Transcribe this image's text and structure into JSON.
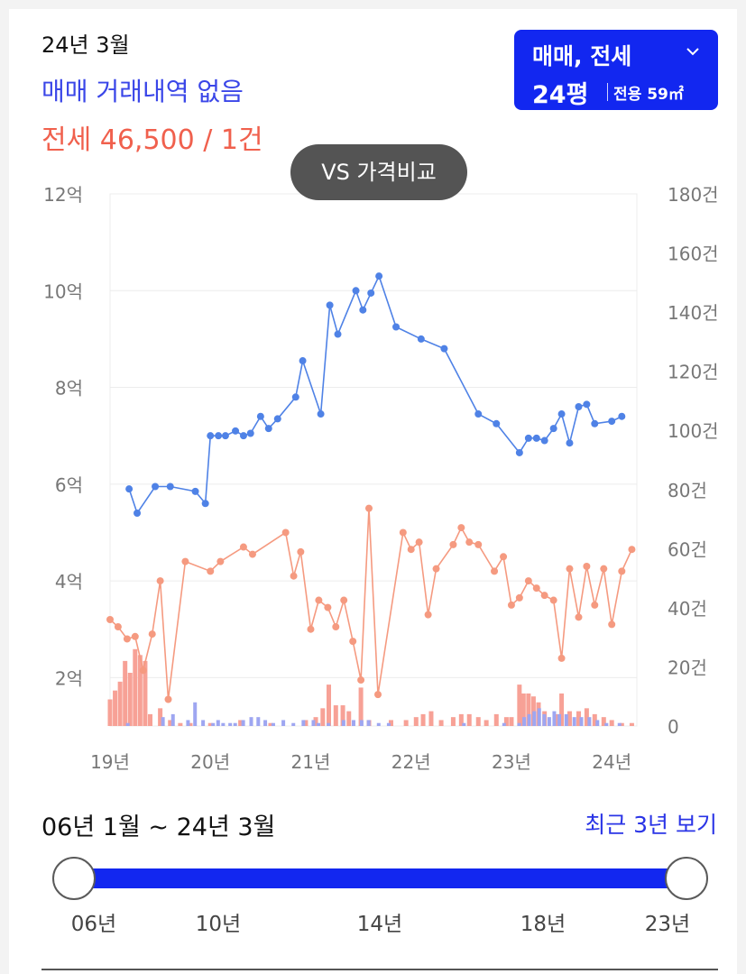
{
  "header": {
    "month": "24년 3월",
    "sale_status": "매매 거래내역 없음",
    "jeonse_status": "전세 46,500 / 1건"
  },
  "type_selector": {
    "label": "매매, 전세",
    "size_main": "24평",
    "size_sub": "전용 59㎡"
  },
  "compare_button": {
    "label": "VS 가격비교"
  },
  "chart_data": {
    "type": "line",
    "x_ticks": [
      "19년",
      "20년",
      "21년",
      "22년",
      "23년",
      "24년"
    ],
    "y_left_ticks": [
      "2억",
      "4억",
      "6억",
      "8억",
      "10억",
      "12억"
    ],
    "y_left_range": [
      1,
      12
    ],
    "y_right_ticks": [
      "0",
      "20건",
      "40건",
      "60건",
      "80건",
      "100건",
      "120건",
      "140건",
      "160건",
      "180건"
    ],
    "y_right_range": [
      0,
      180
    ],
    "x_range": [
      2019.0,
      2024.25
    ],
    "grid": true,
    "series": [
      {
        "color": "#4f82e6",
        "points": [
          [
            2019.19,
            5.9
          ],
          [
            2019.27,
            5.4
          ],
          [
            2019.45,
            5.95
          ],
          [
            2019.6,
            5.95
          ],
          [
            2019.85,
            5.85
          ],
          [
            2019.95,
            5.6
          ],
          [
            2020.0,
            7.0
          ],
          [
            2020.08,
            7.0
          ],
          [
            2020.15,
            7.0
          ],
          [
            2020.25,
            7.1
          ],
          [
            2020.33,
            7.0
          ],
          [
            2020.4,
            7.05
          ],
          [
            2020.5,
            7.4
          ],
          [
            2020.58,
            7.15
          ],
          [
            2020.67,
            7.35
          ],
          [
            2020.85,
            7.8
          ],
          [
            2020.92,
            8.55
          ],
          [
            2021.1,
            7.45
          ],
          [
            2021.19,
            9.7
          ],
          [
            2021.27,
            9.1
          ],
          [
            2021.45,
            10.0
          ],
          [
            2021.52,
            9.6
          ],
          [
            2021.6,
            9.95
          ],
          [
            2021.68,
            10.3
          ],
          [
            2021.85,
            9.25
          ],
          [
            2022.1,
            9.0
          ],
          [
            2022.33,
            8.8
          ],
          [
            2022.67,
            7.45
          ],
          [
            2022.85,
            7.25
          ],
          [
            2023.08,
            6.65
          ],
          [
            2023.17,
            6.95
          ],
          [
            2023.25,
            6.95
          ],
          [
            2023.33,
            6.9
          ],
          [
            2023.42,
            7.15
          ],
          [
            2023.5,
            7.45
          ],
          [
            2023.58,
            6.85
          ],
          [
            2023.67,
            7.6
          ],
          [
            2023.75,
            7.65
          ],
          [
            2023.83,
            7.25
          ],
          [
            2024.0,
            7.3
          ],
          [
            2024.1,
            7.4
          ]
        ]
      },
      {
        "color": "#f59a80",
        "points": [
          [
            2019.0,
            3.2
          ],
          [
            2019.08,
            3.05
          ],
          [
            2019.17,
            2.8
          ],
          [
            2019.25,
            2.85
          ],
          [
            2019.33,
            2.15
          ],
          [
            2019.42,
            2.9
          ],
          [
            2019.5,
            4.0
          ],
          [
            2019.58,
            1.55
          ],
          [
            2019.75,
            4.4
          ],
          [
            2020.0,
            4.2
          ],
          [
            2020.1,
            4.4
          ],
          [
            2020.33,
            4.7
          ],
          [
            2020.42,
            4.55
          ],
          [
            2020.75,
            5.0
          ],
          [
            2020.83,
            4.1
          ],
          [
            2020.9,
            4.6
          ],
          [
            2021.0,
            3.0
          ],
          [
            2021.08,
            3.6
          ],
          [
            2021.17,
            3.45
          ],
          [
            2021.25,
            3.05
          ],
          [
            2021.33,
            3.6
          ],
          [
            2021.42,
            2.75
          ],
          [
            2021.5,
            1.95
          ],
          [
            2021.58,
            5.5
          ],
          [
            2021.67,
            1.65
          ],
          [
            2021.92,
            5.0
          ],
          [
            2022.0,
            4.65
          ],
          [
            2022.08,
            4.8
          ],
          [
            2022.17,
            3.3
          ],
          [
            2022.25,
            4.25
          ],
          [
            2022.42,
            4.75
          ],
          [
            2022.5,
            5.1
          ],
          [
            2022.58,
            4.8
          ],
          [
            2022.67,
            4.75
          ],
          [
            2022.83,
            4.2
          ],
          [
            2022.92,
            4.5
          ],
          [
            2023.0,
            3.5
          ],
          [
            2023.08,
            3.65
          ],
          [
            2023.17,
            4.0
          ],
          [
            2023.25,
            3.85
          ],
          [
            2023.33,
            3.7
          ],
          [
            2023.42,
            3.6
          ],
          [
            2023.5,
            2.4
          ],
          [
            2023.58,
            4.25
          ],
          [
            2023.67,
            3.25
          ],
          [
            2023.75,
            4.3
          ],
          [
            2023.83,
            3.5
          ],
          [
            2023.92,
            4.25
          ],
          [
            2024.0,
            3.1
          ],
          [
            2024.1,
            4.2
          ],
          [
            2024.2,
            4.65
          ]
        ]
      }
    ],
    "volume_bars": {
      "jeonse_color": "#f7a196",
      "sale_color": "#9ea6f1",
      "jeonse": [
        [
          2019.0,
          9
        ],
        [
          2019.05,
          12
        ],
        [
          2019.1,
          15
        ],
        [
          2019.15,
          22
        ],
        [
          2019.2,
          18
        ],
        [
          2019.25,
          26
        ],
        [
          2019.3,
          24
        ],
        [
          2019.35,
          22
        ],
        [
          2019.4,
          4
        ],
        [
          2019.5,
          6
        ],
        [
          2019.6,
          2
        ],
        [
          2019.7,
          1
        ],
        [
          2019.8,
          1
        ],
        [
          2020.0,
          1
        ],
        [
          2020.3,
          2
        ],
        [
          2020.6,
          1
        ],
        [
          2020.95,
          2
        ],
        [
          2021.05,
          3
        ],
        [
          2021.12,
          6
        ],
        [
          2021.18,
          14
        ],
        [
          2021.25,
          7
        ],
        [
          2021.32,
          7
        ],
        [
          2021.38,
          5
        ],
        [
          2021.5,
          13
        ],
        [
          2021.58,
          2
        ],
        [
          2021.8,
          2
        ],
        [
          2021.95,
          2
        ],
        [
          2022.05,
          3
        ],
        [
          2022.12,
          4
        ],
        [
          2022.2,
          5
        ],
        [
          2022.3,
          2
        ],
        [
          2022.42,
          3
        ],
        [
          2022.5,
          4
        ],
        [
          2022.58,
          4
        ],
        [
          2022.67,
          3
        ],
        [
          2022.75,
          2
        ],
        [
          2022.85,
          4
        ],
        [
          2022.95,
          3
        ],
        [
          2023.0,
          3
        ],
        [
          2023.08,
          14
        ],
        [
          2023.12,
          11
        ],
        [
          2023.17,
          11
        ],
        [
          2023.22,
          10
        ],
        [
          2023.27,
          8
        ],
        [
          2023.33,
          5
        ],
        [
          2023.45,
          4
        ],
        [
          2023.5,
          11
        ],
        [
          2023.58,
          5
        ],
        [
          2023.67,
          5
        ],
        [
          2023.75,
          6
        ],
        [
          2023.83,
          4
        ],
        [
          2023.92,
          3
        ],
        [
          2024.0,
          2
        ],
        [
          2024.1,
          1
        ],
        [
          2024.2,
          1
        ]
      ],
      "sale": [
        [
          2019.15,
          1
        ],
        [
          2019.5,
          3
        ],
        [
          2019.6,
          4
        ],
        [
          2019.75,
          2
        ],
        [
          2019.82,
          8
        ],
        [
          2019.9,
          2
        ],
        [
          2020.0,
          1
        ],
        [
          2020.05,
          2
        ],
        [
          2020.1,
          1
        ],
        [
          2020.17,
          1
        ],
        [
          2020.22,
          1
        ],
        [
          2020.3,
          2
        ],
        [
          2020.38,
          3
        ],
        [
          2020.45,
          3
        ],
        [
          2020.52,
          2
        ],
        [
          2020.6,
          1
        ],
        [
          2020.7,
          2
        ],
        [
          2020.8,
          1
        ],
        [
          2020.9,
          2
        ],
        [
          2021.0,
          2
        ],
        [
          2021.05,
          1
        ],
        [
          2021.15,
          1
        ],
        [
          2021.3,
          2
        ],
        [
          2021.4,
          2
        ],
        [
          2021.48,
          2
        ],
        [
          2021.55,
          2
        ],
        [
          2021.65,
          1
        ],
        [
          2021.75,
          1
        ],
        [
          2022.5,
          1
        ],
        [
          2022.9,
          1
        ],
        [
          2023.05,
          1
        ],
        [
          2023.1,
          3
        ],
        [
          2023.15,
          4
        ],
        [
          2023.2,
          5
        ],
        [
          2023.25,
          6
        ],
        [
          2023.3,
          4
        ],
        [
          2023.35,
          3
        ],
        [
          2023.4,
          5
        ],
        [
          2023.45,
          4
        ],
        [
          2023.52,
          4
        ],
        [
          2023.6,
          3
        ],
        [
          2023.67,
          3
        ],
        [
          2023.75,
          3
        ],
        [
          2023.83,
          2
        ],
        [
          2023.92,
          1
        ],
        [
          2024.05,
          1
        ]
      ]
    }
  },
  "period": {
    "range_label": "06년 1월 ~ 24년 3월",
    "recent_link": "최근 3년 보기",
    "ticks": [
      "06년",
      "10년",
      "14년",
      "18년",
      "23년"
    ]
  }
}
